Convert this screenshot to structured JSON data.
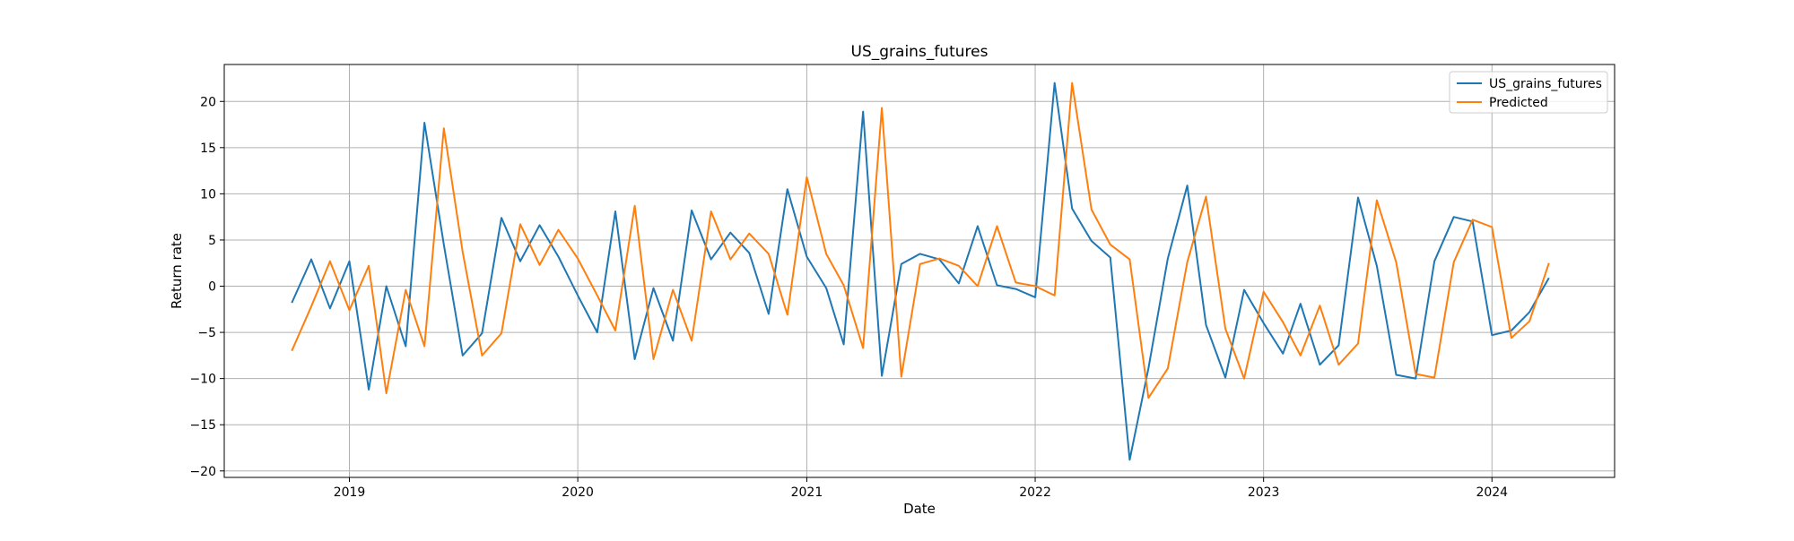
{
  "chart_data": {
    "type": "line",
    "title": "US_grains_futures",
    "xlabel": "Date",
    "ylabel": "Return rate",
    "xlim": [
      "2018-06-15",
      "2024-07-15"
    ],
    "ylim": [
      -20.7,
      24.0
    ],
    "grid": true,
    "legend_position": "top-right",
    "x_ticks": [
      "2019-01-01",
      "2020-01-01",
      "2021-01-01",
      "2022-01-01",
      "2023-01-01",
      "2024-01-01"
    ],
    "x_tick_labels": [
      "2019",
      "2020",
      "2021",
      "2022",
      "2023",
      "2024"
    ],
    "y_ticks": [
      20,
      15,
      10,
      5,
      0,
      -5,
      -10,
      -15,
      -20
    ],
    "y_tick_labels": [
      "20",
      "15",
      "10",
      "5",
      "0",
      "−5",
      "−10",
      "−15",
      "−20"
    ],
    "series": [
      {
        "name": "US_grains_futures",
        "color": "#1f77b4",
        "x": [
          "2018-10-01",
          "2018-11-01",
          "2018-12-01",
          "2019-01-01",
          "2019-02-01",
          "2019-03-01",
          "2019-04-01",
          "2019-05-01",
          "2019-06-01",
          "2019-07-01",
          "2019-08-01",
          "2019-09-01",
          "2019-10-01",
          "2019-11-01",
          "2019-12-01",
          "2020-01-01",
          "2020-02-01",
          "2020-03-01",
          "2020-04-01",
          "2020-05-01",
          "2020-06-01",
          "2020-07-01",
          "2020-08-01",
          "2020-09-01",
          "2020-10-01",
          "2020-11-01",
          "2020-12-01",
          "2021-01-01",
          "2021-02-01",
          "2021-03-01",
          "2021-04-01",
          "2021-05-01",
          "2021-06-01",
          "2021-07-01",
          "2021-08-01",
          "2021-09-01",
          "2021-10-01",
          "2021-11-01",
          "2021-12-01",
          "2022-01-01",
          "2022-02-01",
          "2022-03-01",
          "2022-04-01",
          "2022-05-01",
          "2022-06-01",
          "2022-07-01",
          "2022-08-01",
          "2022-09-01",
          "2022-10-01",
          "2022-11-01",
          "2022-12-01",
          "2023-01-01",
          "2023-02-01",
          "2023-03-01",
          "2023-04-01",
          "2023-05-01",
          "2023-06-01",
          "2023-07-01",
          "2023-08-01",
          "2023-09-01",
          "2023-10-01",
          "2023-11-01",
          "2023-12-01",
          "2024-01-01",
          "2024-02-01",
          "2024-03-01",
          "2024-04-01"
        ],
        "values": [
          -1.8,
          2.9,
          -2.4,
          2.7,
          -11.2,
          0.0,
          -6.5,
          17.7,
          4.5,
          -7.5,
          -5.1,
          7.4,
          2.7,
          6.6,
          3.2,
          -1.0,
          -5.0,
          8.1,
          -7.9,
          -0.2,
          -5.9,
          8.2,
          2.9,
          5.8,
          3.6,
          -3.0,
          10.5,
          3.2,
          -0.2,
          -6.3,
          18.9,
          -9.7,
          2.4,
          3.5,
          2.9,
          0.3,
          6.5,
          0.1,
          -0.3,
          -1.2,
          22.0,
          8.4,
          4.9,
          3.1,
          -18.8,
          -8.9,
          3.0,
          10.9,
          -4.2,
          -9.9,
          -0.4,
          -4.0,
          -7.3,
          -1.9,
          -8.5,
          -6.4,
          9.6,
          2.2,
          -9.6,
          -10.0,
          2.7,
          7.5,
          7.0,
          -5.3,
          -4.8,
          -2.8,
          0.9
        ]
      },
      {
        "name": "Predicted",
        "color": "#ff7f0e",
        "x": [
          "2018-10-01",
          "2018-11-01",
          "2018-12-01",
          "2019-01-01",
          "2019-02-01",
          "2019-03-01",
          "2019-04-01",
          "2019-05-01",
          "2019-06-01",
          "2019-07-01",
          "2019-08-01",
          "2019-09-01",
          "2019-10-01",
          "2019-11-01",
          "2019-12-01",
          "2020-01-01",
          "2020-02-01",
          "2020-03-01",
          "2020-04-01",
          "2020-05-01",
          "2020-06-01",
          "2020-07-01",
          "2020-08-01",
          "2020-09-01",
          "2020-10-01",
          "2020-11-01",
          "2020-12-01",
          "2021-01-01",
          "2021-02-01",
          "2021-03-01",
          "2021-04-01",
          "2021-05-01",
          "2021-06-01",
          "2021-07-01",
          "2021-08-01",
          "2021-09-01",
          "2021-10-01",
          "2021-11-01",
          "2021-12-01",
          "2022-01-01",
          "2022-02-01",
          "2022-03-01",
          "2022-04-01",
          "2022-05-01",
          "2022-06-01",
          "2022-07-01",
          "2022-08-01",
          "2022-09-01",
          "2022-10-01",
          "2022-11-01",
          "2022-12-01",
          "2023-01-01",
          "2023-02-01",
          "2023-03-01",
          "2023-04-01",
          "2023-05-01",
          "2023-06-01",
          "2023-07-01",
          "2023-08-01",
          "2023-09-01",
          "2023-10-01",
          "2023-11-01",
          "2023-12-01",
          "2024-01-01",
          "2024-02-01",
          "2024-03-01",
          "2024-04-01"
        ],
        "values": [
          -7.0,
          -2.2,
          2.7,
          -2.6,
          2.2,
          -11.6,
          -0.4,
          -6.5,
          17.1,
          3.7,
          -7.5,
          -5.1,
          6.7,
          2.3,
          6.1,
          3.0,
          -1.0,
          -4.8,
          8.7,
          -7.9,
          -0.4,
          -5.9,
          8.1,
          2.9,
          5.7,
          3.5,
          -3.1,
          11.8,
          3.5,
          0.1,
          -6.7,
          19.3,
          -9.8,
          2.4,
          3.0,
          2.2,
          0.0,
          6.5,
          0.4,
          0.0,
          -1.0,
          22.0,
          8.3,
          4.5,
          2.9,
          -12.1,
          -8.9,
          2.6,
          9.7,
          -4.6,
          -10.0,
          -0.6,
          -3.9,
          -7.5,
          -2.1,
          -8.5,
          -6.2,
          9.3,
          2.6,
          -9.5,
          -9.9,
          2.6,
          7.2,
          6.4,
          -5.6,
          -3.8,
          2.5
        ]
      }
    ]
  }
}
